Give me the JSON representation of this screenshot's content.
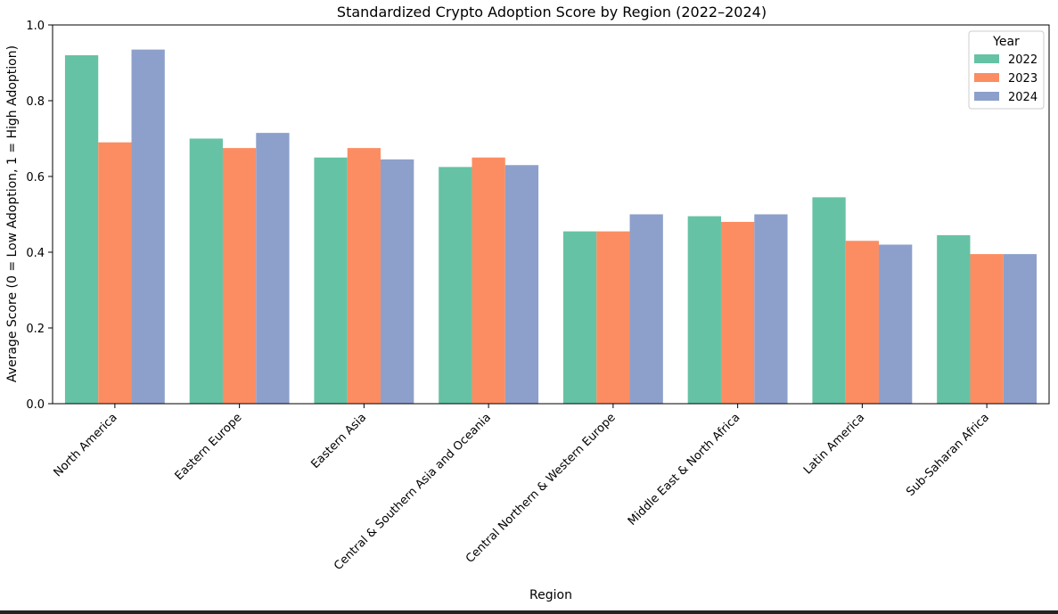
{
  "chart_data": {
    "type": "bar",
    "title": "Standardized Crypto Adoption Score by Region (2022–2024)",
    "xlabel": "Region",
    "ylabel": "Average Score (0 = Low Adoption, 1 = High Adoption)",
    "ylim": [
      0,
      1.0
    ],
    "yticks": [
      "0.0",
      "0.2",
      "0.4",
      "0.6",
      "0.8",
      "1.0"
    ],
    "grid": false,
    "legend": {
      "title": "Year",
      "placement": "top-right"
    },
    "categories": [
      "North America",
      "Eastern Europe",
      "Eastern Asia",
      "Central & Southern Asia and Oceania",
      "Central Northern & Western Europe",
      "Middle East & North Africa",
      "Latin America",
      "Sub-Saharan Africa"
    ],
    "series": [
      {
        "name": "2022",
        "color": "#66c2a5",
        "values": [
          0.92,
          0.7,
          0.65,
          0.625,
          0.455,
          0.495,
          0.545,
          0.445
        ]
      },
      {
        "name": "2023",
        "color": "#fc8d62",
        "values": [
          0.69,
          0.675,
          0.675,
          0.65,
          0.455,
          0.48,
          0.43,
          0.395
        ]
      },
      {
        "name": "2024",
        "color": "#8da0cb",
        "values": [
          0.935,
          0.715,
          0.645,
          0.63,
          0.5,
          0.5,
          0.42,
          0.395
        ]
      }
    ]
  }
}
